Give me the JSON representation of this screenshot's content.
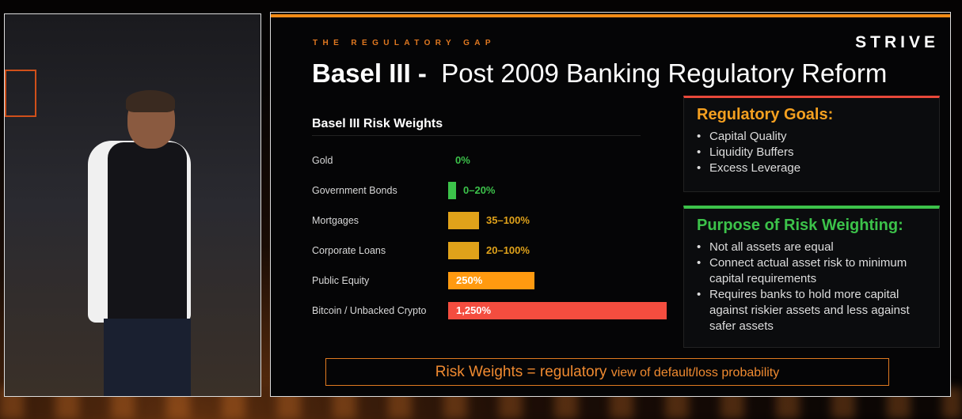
{
  "slide": {
    "kicker": "THE REGULATORY GAP",
    "logo": "STRIVE",
    "title_bold": "Basel III -",
    "title_rest": "Post 2009 Banking Regulatory Reform",
    "goals": {
      "heading": "Regulatory Goals:",
      "color": "#f5a020",
      "accent": "#e8483a",
      "items": [
        "Capital Quality",
        "Liquidity Buffers",
        "Excess Leverage"
      ]
    },
    "purpose": {
      "heading": "Purpose of Risk Weighting:",
      "color": "#3cc24a",
      "accent": "#3cc24a",
      "items": [
        "Not all assets are equal",
        "Connect actual asset risk to minimum capital requirements",
        "Requires banks to hold more capital against riskier assets and less against safer assets"
      ]
    },
    "footer": {
      "main": "Risk Weights = regulatory",
      "small": "view of default/loss probability"
    }
  },
  "chart_data": {
    "type": "bar",
    "title": "Basel III Risk Weights",
    "orientation": "horizontal",
    "categories": [
      "Gold",
      "Government Bonds",
      "Mortgages",
      "Corporate Loans",
      "Public Equity",
      "Bitcoin / Unbacked Crypto"
    ],
    "labels": [
      "0%",
      "0–20%",
      "35–100%",
      "20–100%",
      "250%",
      "1,250%"
    ],
    "values_max": [
      0,
      20,
      100,
      100,
      250,
      1250
    ],
    "colors": [
      "#3cc24a",
      "#3cc24a",
      "#e0a21a",
      "#e0a21a",
      "#ff9a10",
      "#f44d3f"
    ],
    "label_colors": [
      "#3cc24a",
      "#3cc24a",
      "#e0a21a",
      "#e0a21a",
      "#ffffff",
      "#ffffff"
    ]
  }
}
